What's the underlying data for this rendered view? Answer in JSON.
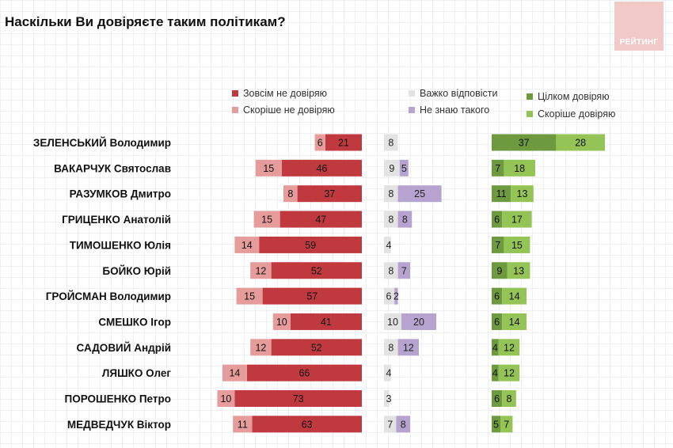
{
  "title": "Наскільки Ви довіряєте таким політикам?",
  "logo_text": "РЕЙТИНГ",
  "colors": {
    "strongly_distrust": "#c0393e",
    "rather_distrust": "#e59c9b",
    "hard_to_say": "#e3e3e3",
    "dont_know": "#b7a3cf",
    "fully_trust": "#6d9a3f",
    "rather_trust": "#94c356"
  },
  "legend": {
    "strongly_distrust": "Зовсім не довіряю",
    "rather_distrust": "Скоріше не довіряю",
    "hard_to_say": "Важко відповісти",
    "dont_know": "Не знаю такого",
    "fully_trust": "Цілком довіряю",
    "rather_trust": "Скоріше довіряю"
  },
  "chart_data": {
    "type": "bar",
    "title": "Наскільки Ви довіряєте таким політикам?",
    "categories": [
      "ЗЕЛЕНСЬКИЙ Володимир",
      "ВАКАРЧУК Святослав",
      "РАЗУМКОВ Дмитро",
      "ГРИЦЕНКО Анатолій",
      "ТИМОШЕНКО Юлія",
      "БОЙКО Юрій",
      "ГРОЙСМАН Володимир",
      "СМЕШКО Ігор",
      "САДОВИЙ Андрій",
      "ЛЯШКО Олег",
      "ПОРОШЕНКО Петро",
      "МЕДВЕДЧУК Віктор"
    ],
    "series": [
      {
        "name": "Зовсім не довіряю",
        "key": "strongly_distrust",
        "values": [
          21,
          46,
          37,
          47,
          59,
          52,
          57,
          41,
          52,
          66,
          73,
          63
        ]
      },
      {
        "name": "Скоріше не довіряю",
        "key": "rather_distrust",
        "values": [
          6,
          15,
          8,
          15,
          14,
          12,
          15,
          10,
          12,
          14,
          10,
          11
        ]
      },
      {
        "name": "Важко відповісти",
        "key": "hard_to_say",
        "values": [
          8,
          9,
          8,
          8,
          4,
          8,
          6,
          10,
          8,
          4,
          3,
          7
        ]
      },
      {
        "name": "Не знаю такого",
        "key": "dont_know",
        "values": [
          0,
          5,
          25,
          8,
          0,
          7,
          2,
          20,
          12,
          0,
          0,
          8
        ]
      },
      {
        "name": "Цілком довіряю",
        "key": "fully_trust",
        "values": [
          37,
          7,
          11,
          6,
          7,
          9,
          6,
          6,
          4,
          4,
          6,
          5
        ]
      },
      {
        "name": "Скоріше довіряю",
        "key": "rather_trust",
        "values": [
          28,
          18,
          13,
          17,
          15,
          13,
          14,
          14,
          12,
          12,
          8,
          7
        ]
      }
    ],
    "legend_position": "top",
    "grid": false
  }
}
